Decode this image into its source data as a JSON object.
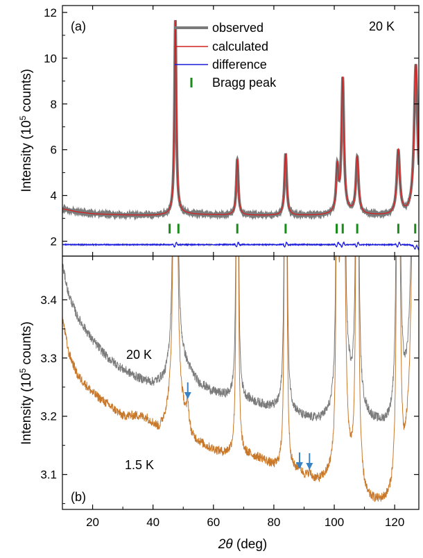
{
  "colors": {
    "observed": "#7a7a7a",
    "calculated": "#d42020",
    "difference": "#1a1adc",
    "bragg": "#1a8a1a",
    "trace_20k": "#7a7a7a",
    "trace_1p5k": "#c8782a",
    "arrow": "#3a82c4"
  },
  "chart_data": [
    {
      "type": "line",
      "panel_label": "(a)",
      "temperature_label": "20 K",
      "ylabel_prefix": "Intensity (10",
      "ylabel_exp": "5",
      "ylabel_suffix": " counts)",
      "xlim": [
        10,
        128
      ],
      "ylim": [
        1.35,
        12.3
      ],
      "yticks": [
        2,
        4,
        6,
        8,
        10,
        12
      ],
      "legend": {
        "placement": "top-center",
        "observed": "observed",
        "calculated": "calculated",
        "difference": "difference",
        "bragg": "Bragg peak"
      },
      "baseline": [
        [
          10,
          3.42
        ],
        [
          15,
          3.28
        ],
        [
          20,
          3.2
        ],
        [
          30,
          3.15
        ],
        [
          40,
          3.13
        ],
        [
          45,
          3.15
        ],
        [
          48,
          3.22
        ],
        [
          55,
          3.17
        ],
        [
          65,
          3.14
        ],
        [
          75,
          3.13
        ],
        [
          85,
          3.12
        ],
        [
          95,
          3.13
        ],
        [
          100,
          3.17
        ],
        [
          104,
          3.22
        ],
        [
          110,
          3.15
        ],
        [
          118,
          3.12
        ],
        [
          124,
          3.14
        ],
        [
          128,
          3.3
        ]
      ],
      "peaks": [
        {
          "x": 47.4,
          "height": 8.45,
          "width": 0.45
        },
        {
          "x": 67.9,
          "height": 2.44,
          "width": 0.5
        },
        {
          "x": 83.9,
          "height": 2.7,
          "width": 0.55
        },
        {
          "x": 101.0,
          "height": 1.9,
          "width": 0.55
        },
        {
          "x": 102.8,
          "height": 5.85,
          "width": 0.6
        },
        {
          "x": 107.6,
          "height": 2.45,
          "width": 0.65
        },
        {
          "x": 121.2,
          "height": 2.8,
          "width": 0.75
        },
        {
          "x": 127.0,
          "height": 6.45,
          "width": 0.85
        }
      ],
      "bragg_positions": [
        45.5,
        48.4,
        67.9,
        83.9,
        100.8,
        102.8,
        107.6,
        121.2,
        126.8
      ],
      "bragg_level": 2.55,
      "difference_level": 1.85,
      "difference_wiggles": [
        47.4,
        67.9,
        83.9,
        101.0,
        102.8,
        107.6,
        121.2,
        127.0
      ]
    },
    {
      "type": "line",
      "panel_label": "(b)",
      "xlabel_symbol": "2θ",
      "xlabel_unit": " (deg)",
      "ylabel_prefix": "Intensity (10",
      "ylabel_exp": "5",
      "ylabel_suffix": " counts)",
      "xlim": [
        10,
        128
      ],
      "ylim": [
        3.04,
        3.475
      ],
      "xticks": [
        20,
        40,
        60,
        80,
        100,
        120
      ],
      "yticks": [
        3.1,
        3.2,
        3.3,
        3.4
      ],
      "series": [
        {
          "name": "20 K",
          "baseline": [
            [
              10,
              3.46
            ],
            [
              12,
              3.41
            ],
            [
              15,
              3.37
            ],
            [
              20,
              3.33
            ],
            [
              25,
              3.3
            ],
            [
              30,
              3.28
            ],
            [
              35,
              3.265
            ],
            [
              40,
              3.255
            ],
            [
              44,
              3.26
            ],
            [
              46,
              3.28
            ],
            [
              48,
              3.3
            ],
            [
              50,
              3.29
            ],
            [
              55,
              3.255
            ],
            [
              60,
              3.24
            ],
            [
              66,
              3.23
            ],
            [
              72,
              3.225
            ],
            [
              78,
              3.215
            ],
            [
              82,
              3.21
            ],
            [
              86,
              3.205
            ],
            [
              90,
              3.195
            ],
            [
              95,
              3.19
            ],
            [
              99,
              3.195
            ],
            [
              102,
              3.21
            ],
            [
              105,
              3.23
            ],
            [
              108,
              3.21
            ],
            [
              112,
              3.19
            ],
            [
              116,
              3.18
            ],
            [
              119,
              3.18
            ],
            [
              121,
              3.19
            ],
            [
              124,
              3.22
            ],
            [
              126,
              3.26
            ],
            [
              128,
              3.28
            ]
          ]
        },
        {
          "name": "1.5 K",
          "baseline": [
            [
              10,
              3.37
            ],
            [
              12,
              3.31
            ],
            [
              15,
              3.27
            ],
            [
              20,
              3.24
            ],
            [
              25,
              3.22
            ],
            [
              30,
              3.2
            ],
            [
              35,
              3.2
            ],
            [
              38,
              3.195
            ],
            [
              42,
              3.175
            ],
            [
              44,
              3.19
            ],
            [
              46,
              3.21
            ],
            [
              48,
              3.21
            ],
            [
              50,
              3.2
            ],
            [
              53,
              3.16
            ],
            [
              58,
              3.145
            ],
            [
              63,
              3.135
            ],
            [
              68,
              3.13
            ],
            [
              72,
              3.13
            ],
            [
              76,
              3.125
            ],
            [
              80,
              3.11
            ],
            [
              85,
              3.1
            ],
            [
              88,
              3.1
            ],
            [
              92,
              3.09
            ],
            [
              95,
              3.085
            ],
            [
              98,
              3.09
            ],
            [
              101,
              3.1
            ],
            [
              104,
              3.1
            ],
            [
              108,
              3.08
            ],
            [
              111,
              3.05
            ],
            [
              115,
              3.045
            ],
            [
              118,
              3.045
            ],
            [
              120,
              3.05
            ],
            [
              123,
              3.08
            ],
            [
              126,
              3.18
            ],
            [
              128,
              3.22
            ]
          ]
        }
      ],
      "magnetic_peaks_1p5k": [
        {
          "x": 51.5,
          "height": 0.04,
          "width": 0.45
        },
        {
          "x": 88.5,
          "height": 0.012,
          "width": 0.5
        },
        {
          "x": 91.8,
          "height": 0.01,
          "width": 0.5
        }
      ],
      "arrows_x": [
        51.5,
        88.5,
        91.8
      ]
    }
  ]
}
